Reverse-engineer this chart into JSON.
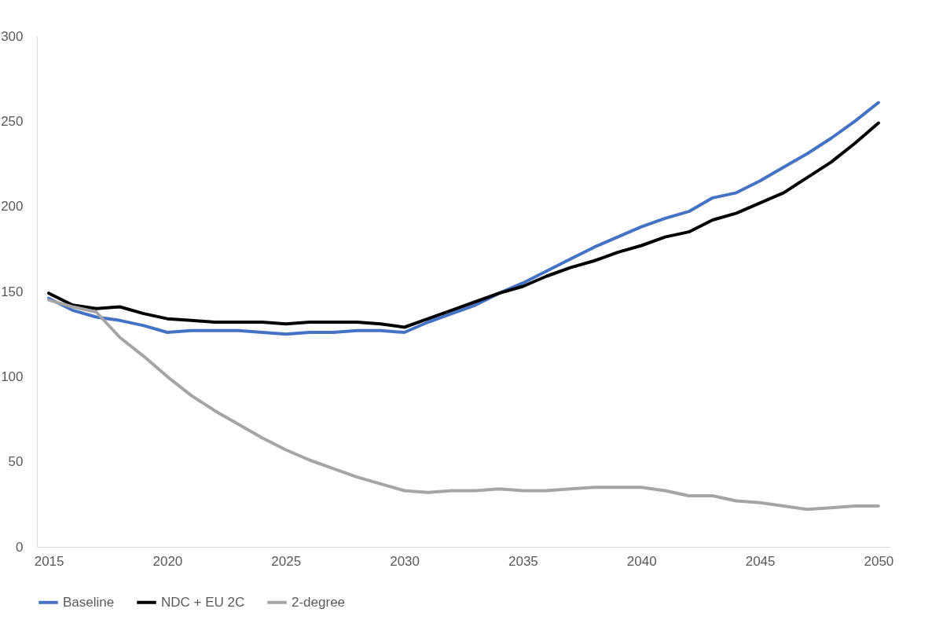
{
  "chart_data": {
    "type": "line",
    "x": [
      2015,
      2016,
      2017,
      2018,
      2019,
      2020,
      2021,
      2022,
      2023,
      2024,
      2025,
      2026,
      2027,
      2028,
      2029,
      2030,
      2031,
      2032,
      2033,
      2034,
      2035,
      2036,
      2037,
      2038,
      2039,
      2040,
      2041,
      2042,
      2043,
      2044,
      2045,
      2046,
      2047,
      2048,
      2049,
      2050
    ],
    "series": [
      {
        "name": "Baseline",
        "color": "#4472c4",
        "values": [
          146,
          139,
          135,
          133,
          130,
          126,
          127,
          127,
          127,
          126,
          125,
          126,
          126,
          127,
          127,
          126,
          132,
          137,
          142,
          149,
          155,
          162,
          169,
          176,
          182,
          188,
          193,
          197,
          205,
          208,
          215,
          223,
          231,
          240,
          250,
          261
        ]
      },
      {
        "name": "NDC + EU 2C",
        "color": "#000000",
        "values": [
          149,
          142,
          140,
          141,
          137,
          134,
          133,
          132,
          132,
          132,
          131,
          132,
          132,
          132,
          131,
          129,
          134,
          139,
          144,
          149,
          153,
          159,
          164,
          168,
          173,
          177,
          182,
          185,
          192,
          196,
          202,
          208,
          217,
          226,
          237,
          249
        ]
      },
      {
        "name": "2-degree",
        "color": "#a5a5a5",
        "values": [
          145,
          141,
          138,
          123,
          112,
          100,
          89,
          80,
          72,
          64,
          57,
          51,
          46,
          41,
          37,
          33,
          32,
          33,
          33,
          34,
          33,
          33,
          34,
          35,
          35,
          35,
          33,
          30,
          30,
          27,
          26,
          24,
          22,
          23,
          24,
          24
        ]
      }
    ],
    "xlim": [
      2014.5,
      2050.5
    ],
    "xticks": [
      2015,
      2020,
      2025,
      2030,
      2035,
      2040,
      2045,
      2050
    ],
    "ylim": [
      0,
      300
    ],
    "yticks": [
      0,
      50,
      100,
      150,
      200,
      250,
      300
    ],
    "grid": false,
    "legend": "bottom",
    "marker": "none",
    "line_style": "solid"
  }
}
